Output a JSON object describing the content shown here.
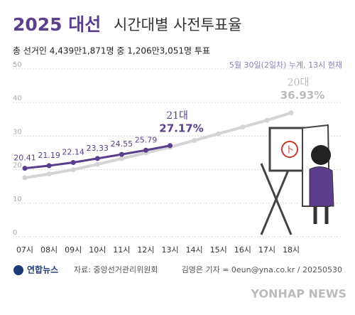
{
  "chart_data": {
    "type": "line",
    "title": "2025 대선",
    "subtitle": "시간대별 사전투표율",
    "description": "총 선거인 4,439만1,871명 중 1,206만3,051명 투표",
    "note": "5월 30일(2일차) 누계, 13시 현재",
    "categories": [
      "07시",
      "08시",
      "09시",
      "10시",
      "11시",
      "12시",
      "13시",
      "14시",
      "15시",
      "16시",
      "17시",
      "18시"
    ],
    "series": [
      {
        "name": "20대",
        "color": "#d4d4d4",
        "values": [
          17.6,
          18.7,
          20.0,
          21.6,
          23.3,
          25.0,
          26.7,
          28.7,
          30.7,
          32.7,
          34.7,
          36.93
        ],
        "value_labels": [
          null,
          null,
          null,
          null,
          null,
          null,
          null,
          null,
          null,
          null,
          null,
          "36.93%"
        ]
      },
      {
        "name": "21대",
        "color": "#5b3f8c",
        "values": [
          20.41,
          21.19,
          22.14,
          23.33,
          24.55,
          25.79,
          27.17,
          null,
          null,
          null,
          null,
          null
        ],
        "value_labels": [
          "20.41",
          "21.19",
          "22.14",
          "23.33",
          "24.55",
          "25.79",
          "27.17%",
          null,
          null,
          null,
          null,
          null
        ]
      }
    ],
    "ylim": [
      0,
      50
    ],
    "yticks": [
      0,
      10,
      20,
      30,
      40,
      50
    ],
    "grid": true,
    "source": "자료: 중앙선거관리위원회",
    "publisher": "연합뉴스",
    "credit": "김영은 기자 = 0eun@yna.co.kr / 20250530",
    "watermark": "YONHAP NEWS"
  }
}
